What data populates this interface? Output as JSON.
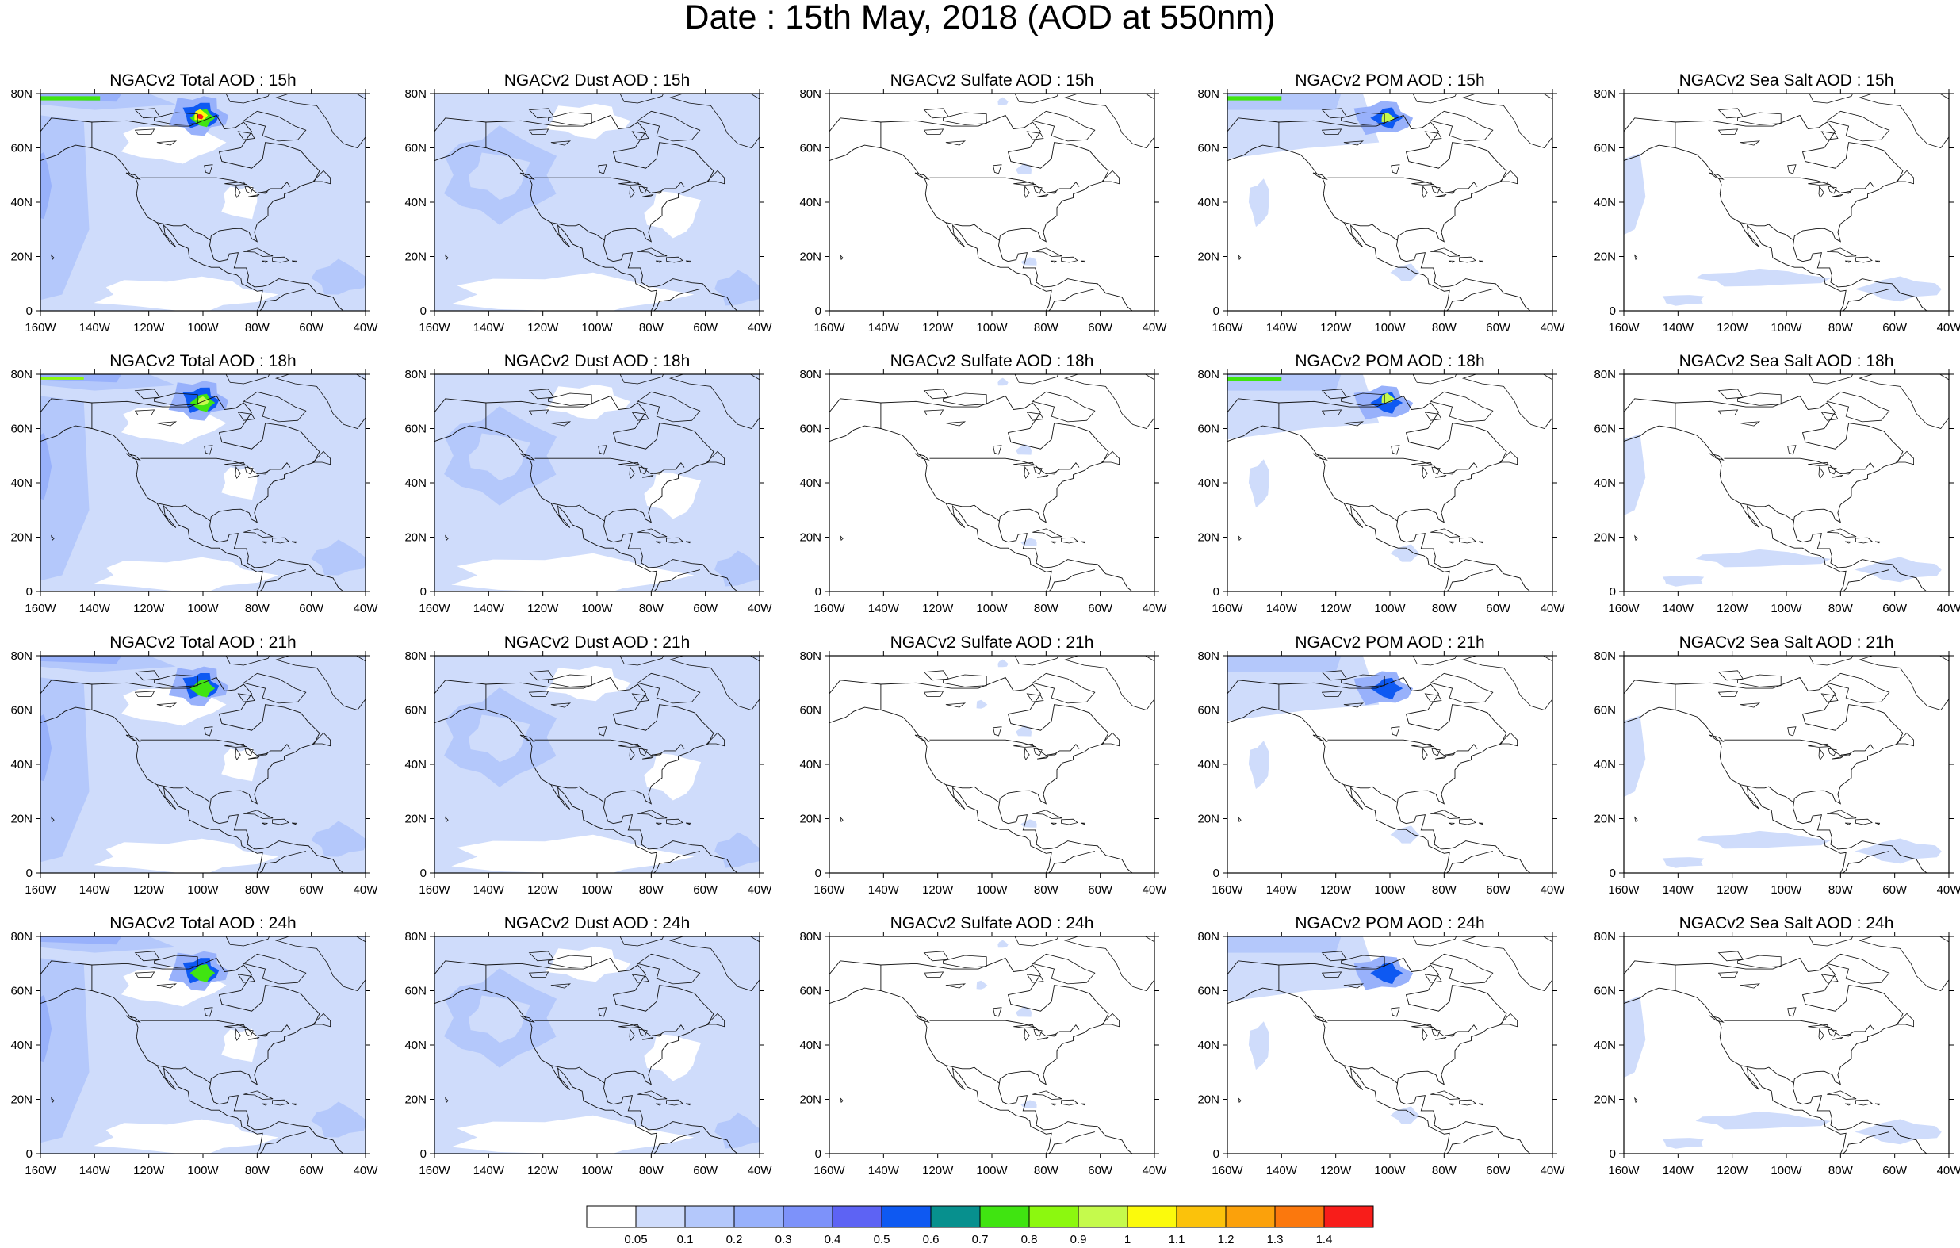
{
  "title": "Date : 15th May, 2018 (AOD at 550nm)",
  "map_axes": {
    "lon_ticks": [
      "160W",
      "140W",
      "120W",
      "100W",
      "80W",
      "60W",
      "40W"
    ],
    "lat_ticks": [
      "80N",
      "60N",
      "40N",
      "20N",
      "0"
    ]
  },
  "rows": [
    "15h",
    "18h",
    "21h",
    "24h"
  ],
  "columns": [
    {
      "species": "Total"
    },
    {
      "species": "Dust"
    },
    {
      "species": "Sulfate"
    },
    {
      "species": "POM"
    },
    {
      "species": "Sea Salt"
    }
  ],
  "panels": [
    [
      {
        "title": "NGACv2 Total AOD : 15h"
      },
      {
        "title": "NGACv2 Dust AOD : 15h"
      },
      {
        "title": "NGACv2 Sulfate AOD : 15h"
      },
      {
        "title": "NGACv2 POM AOD : 15h"
      },
      {
        "title": "NGACv2 Sea Salt AOD : 15h"
      }
    ],
    [
      {
        "title": "NGACv2 Total AOD : 18h"
      },
      {
        "title": "NGACv2 Dust AOD : 18h"
      },
      {
        "title": "NGACv2 Sulfate AOD : 18h"
      },
      {
        "title": "NGACv2 POM AOD : 18h"
      },
      {
        "title": "NGACv2 Sea Salt AOD : 18h"
      }
    ],
    [
      {
        "title": "NGACv2 Total AOD : 21h"
      },
      {
        "title": "NGACv2 Dust AOD : 21h"
      },
      {
        "title": "NGACv2 Sulfate AOD : 21h"
      },
      {
        "title": "NGACv2 POM AOD : 21h"
      },
      {
        "title": "NGACv2 Sea Salt AOD : 21h"
      }
    ],
    [
      {
        "title": "NGACv2 Total AOD : 24h"
      },
      {
        "title": "NGACv2 Dust AOD : 24h"
      },
      {
        "title": "NGACv2 Sulfate AOD : 24h"
      },
      {
        "title": "NGACv2 POM AOD : 24h"
      },
      {
        "title": "NGACv2 Sea Salt  AOD : 24h"
      }
    ]
  ],
  "colorbar": {
    "labels": [
      "0.05",
      "0.1",
      "0.2",
      "0.3",
      "0.4",
      "0.5",
      "0.6",
      "0.7",
      "0.8",
      "0.9",
      "1",
      "1.1",
      "1.2",
      "1.3",
      "1.4"
    ],
    "colors": [
      "#ffffff",
      "#cfdcfb",
      "#b4c8fb",
      "#98b1fb",
      "#7d92fa",
      "#5d63f4",
      "#0e59f2",
      "#07908e",
      "#40e411",
      "#8cf80f",
      "#c5fa4c",
      "#fbfa0c",
      "#fbc20b",
      "#fba10b",
      "#fb780d",
      "#f81d1a"
    ]
  }
}
